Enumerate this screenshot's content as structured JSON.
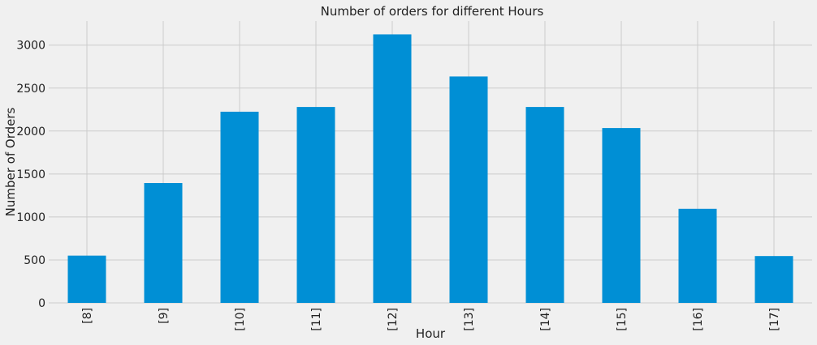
{
  "chart_data": {
    "type": "bar",
    "title": "Number of orders for different Hours",
    "xlabel": "Hour",
    "ylabel": "Number of Orders",
    "categories": [
      "[8]",
      "[9]",
      "[10]",
      "[11]",
      "[12]",
      "[13]",
      "[14]",
      "[15]",
      "[16]",
      "[17]"
    ],
    "values": [
      550,
      1395,
      2225,
      2280,
      3125,
      2635,
      2280,
      2035,
      1095,
      545
    ],
    "ylim": [
      0,
      3280
    ],
    "yticks": [
      0,
      500,
      1000,
      1500,
      2000,
      2500,
      3000
    ],
    "grid": true,
    "bar_color": "#008fd5",
    "background_color": "#f0f0f0",
    "grid_color": "#cbcbcb"
  }
}
